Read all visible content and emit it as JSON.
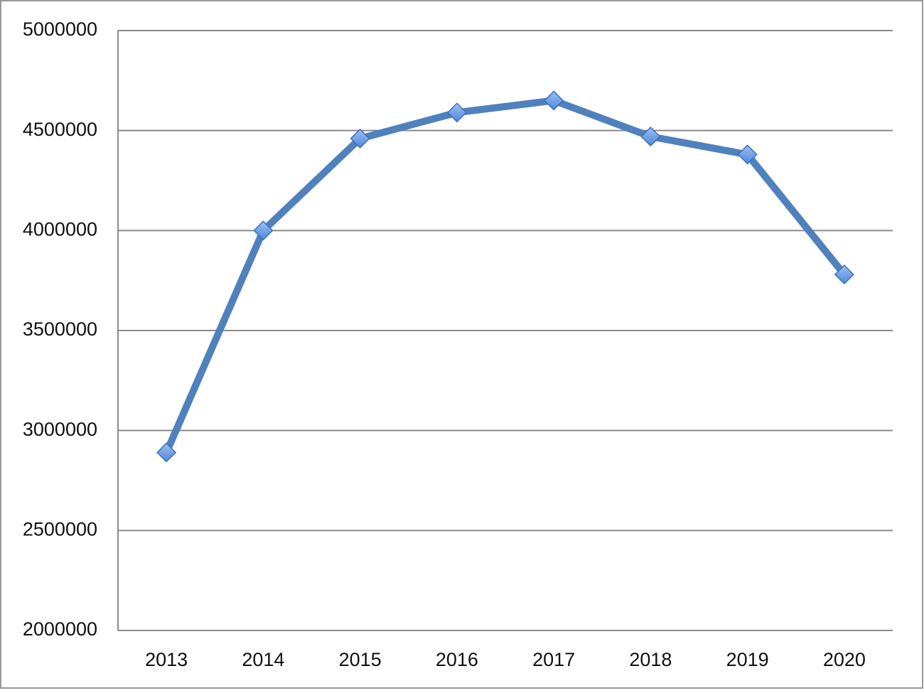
{
  "chart_data": {
    "type": "line",
    "categories": [
      "2013",
      "2014",
      "2015",
      "2016",
      "2017",
      "2018",
      "2019",
      "2020"
    ],
    "series": [
      {
        "color": "#4f81bd",
        "values": [
          2890000,
          4000000,
          4460000,
          4590000,
          4650000,
          4470000,
          4380000,
          3780000
        ]
      }
    ],
    "ylim": [
      2000000,
      5000000
    ],
    "yticks": [
      2000000,
      2500000,
      3000000,
      3500000,
      4000000,
      4500000,
      5000000
    ],
    "grid": true,
    "marker": "diamond"
  }
}
